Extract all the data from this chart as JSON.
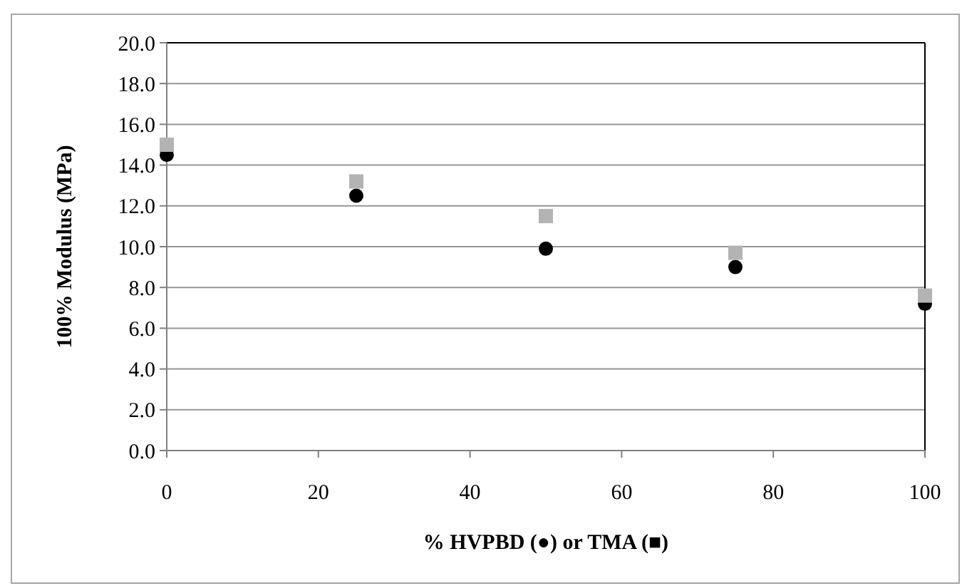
{
  "chart_data": {
    "type": "scatter",
    "xlabel": "% HVPBD (●) or TMA (■)",
    "ylabel": "100% Modulus (MPa)",
    "x": [
      0,
      25,
      50,
      75,
      100
    ],
    "series": [
      {
        "color": "#000000",
        "marker": "circle",
        "values": [
          14.5,
          12.5,
          9.9,
          9.0,
          7.2
        ]
      },
      {
        "color": "#b3b3b3",
        "marker": "square",
        "values": [
          15.0,
          13.2,
          11.5,
          9.7,
          7.6
        ]
      }
    ],
    "xlim": [
      0,
      100
    ],
    "xticks": [
      0,
      20,
      40,
      60,
      80,
      100
    ],
    "ylim": [
      0,
      20
    ],
    "yticks": [
      {
        "value": 0,
        "label": "0.0"
      },
      {
        "value": 2,
        "label": "2.0"
      },
      {
        "value": 4,
        "label": "4.0"
      },
      {
        "value": 6,
        "label": "6.0"
      },
      {
        "value": 8,
        "label": "8.0"
      },
      {
        "value": 10,
        "label": "10.0"
      },
      {
        "value": 12,
        "label": "12.0"
      },
      {
        "value": 14,
        "label": "14.0"
      },
      {
        "value": 16,
        "label": "16.0"
      },
      {
        "value": 18,
        "label": "18.0"
      },
      {
        "value": 20,
        "label": "20.0"
      }
    ],
    "grid": "y"
  }
}
